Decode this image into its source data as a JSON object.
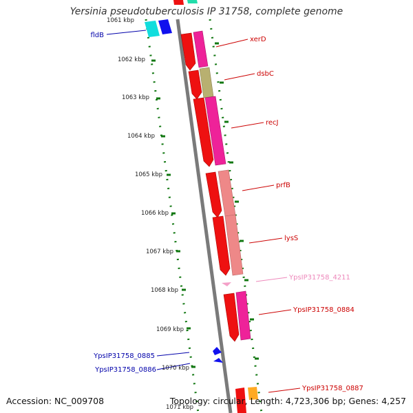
{
  "title": "Yersinia pseudotuberculosis IP 31758, complete genome",
  "accession": "Accession: NC_009708",
  "topology": "Topology: circular, Length: 4,723,306 bp; Genes: 4,257",
  "ticks": [
    "1061 kbp",
    "1062 kbp",
    "1063 kbp",
    "1064 kbp",
    "1065 kbp",
    "1066 kbp",
    "1067 kbp",
    "1068 kbp",
    "1069 kbp",
    "1070 kbp",
    "1071 kbp"
  ],
  "colors": {
    "red": "#ee1111",
    "magenta": "#ee2299",
    "olive": "#b8b070",
    "salmon": "#ee8888",
    "pink": "#f4a0c8",
    "blue": "#1111ee",
    "cyan": "#11dddd",
    "orange": "#ffaa22",
    "teal": "#22ddaa",
    "green": "#117711",
    "axis": "#888888"
  },
  "genes": [
    {
      "name": "fldB",
      "color": "#0000aa"
    },
    {
      "name": "xerD",
      "color": "#cc0000"
    },
    {
      "name": "dsbC",
      "color": "#cc0000"
    },
    {
      "name": "recJ",
      "color": "#cc0000"
    },
    {
      "name": "prfB",
      "color": "#cc0000"
    },
    {
      "name": "lysS",
      "color": "#cc0000"
    },
    {
      "name": "YpsIP31758_4211",
      "color": "#ee88bb"
    },
    {
      "name": "YpsIP31758_0884",
      "color": "#cc0000"
    },
    {
      "name": "YpsIP31758_0885",
      "color": "#0000aa"
    },
    {
      "name": "YpsIP31758_0886",
      "color": "#0000aa"
    },
    {
      "name": "YpsIP31758_0887",
      "color": "#cc0000"
    }
  ]
}
